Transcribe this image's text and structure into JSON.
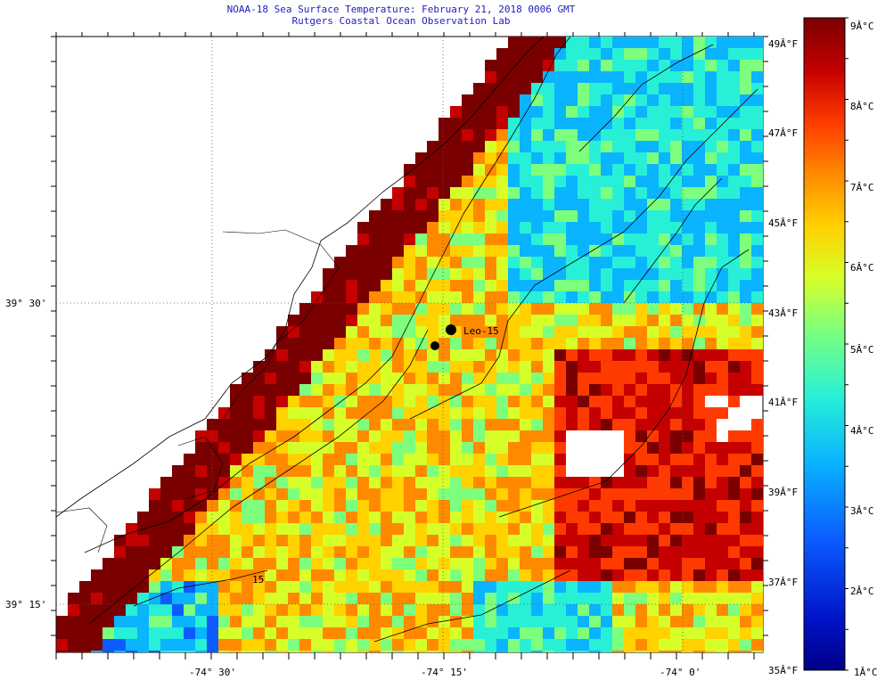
{
  "title": {
    "line1": "NOAA-18 Sea Surface Temperature:  February 21, 2018 0006 GMT",
    "line2": "Rutgers Coastal Ocean Observation Lab"
  },
  "map": {
    "lat_labels": [
      "39° 30'",
      "39° 15'"
    ],
    "lon_labels": [
      "-74° 30'",
      "-74° 15'",
      "-74° 0'"
    ],
    "station_label": "Leo-15",
    "contour_label": "15"
  },
  "colorbar": {
    "celsius_labels": [
      "9Â°C",
      "8Â°C",
      "7Â°C",
      "6Â°C",
      "5Â°C",
      "4Â°C",
      "3Â°C",
      "2Â°C",
      "1Â°C"
    ],
    "fahrenheit_labels": [
      "49Â°F",
      "47Â°F",
      "45Â°F",
      "43Â°F",
      "41Â°F",
      "39Â°F",
      "37Â°F",
      "35Â°F"
    ],
    "colors": [
      "#7a0000",
      "#c40000",
      "#ff3a00",
      "#ff8a00",
      "#ffd200",
      "#d6ff2a",
      "#7dff7d",
      "#28f0d6",
      "#0ab4ff",
      "#0a5cff",
      "#0a14c8",
      "#000087"
    ]
  }
}
